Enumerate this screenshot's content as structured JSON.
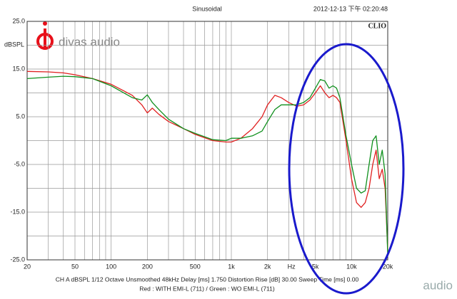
{
  "chart_data": {
    "type": "line",
    "title": "Sinusoidal",
    "timestamp": "2012-12-13 下午 02:20:48",
    "brand": "CLIO",
    "ylabel": "dBSPL",
    "xlabel": "Hz",
    "logo": "divas audio",
    "watermark": "audio",
    "settings_text": "CH A   dBSPL   1/12 Octave   Unsmoothed   48kHz   Delay [ms] 1.750   Distortion Rise [dB] 30.00   Sweep Time [ms] 0.00",
    "caption": "Red : WITH EMI-L (711) / Green : WO EMI-L (711)",
    "xlog": true,
    "grid": true,
    "xlim": [
      20,
      20000
    ],
    "ylim": [
      -25,
      25
    ],
    "xticks": [
      20,
      50,
      100,
      200,
      500,
      {
        "value": 1000,
        "label": "1k"
      },
      {
        "value": 2000,
        "label": "2k"
      },
      {
        "value": 5000,
        "label": "5k"
      },
      {
        "value": 10000,
        "label": "10k"
      },
      {
        "value": 20000,
        "label": "20k"
      }
    ],
    "xgrid": [
      30,
      40,
      60,
      70,
      80,
      90,
      300,
      400,
      600,
      700,
      800,
      900,
      3000,
      4000,
      6000,
      7000,
      8000,
      9000
    ],
    "yticks": [
      {
        "value": 25,
        "label": "25.0"
      },
      {
        "value": 15,
        "label": "15.0"
      },
      {
        "value": 5,
        "label": "5.0"
      },
      {
        "value": -5,
        "label": "-5.0"
      },
      {
        "value": -15,
        "label": "-15.0"
      },
      {
        "value": -25,
        "label": "-25.0"
      }
    ],
    "ygrid": [
      20,
      10,
      0,
      -10,
      -20
    ],
    "x": [
      20,
      30,
      40,
      50,
      70,
      100,
      150,
      180,
      200,
      220,
      250,
      300,
      400,
      500,
      700,
      900,
      1000,
      1200,
      1500,
      1800,
      2000,
      2300,
      2600,
      3000,
      3500,
      4000,
      4500,
      5000,
      5500,
      6000,
      6500,
      7000,
      7500,
      8000,
      9000,
      10000,
      11000,
      12000,
      13000,
      14000,
      15000,
      16000,
      17000,
      18000,
      19000,
      20000
    ],
    "series": [
      {
        "color": "#e02020",
        "values": [
          14.5,
          14.4,
          14.2,
          13.8,
          13,
          11.8,
          9.5,
          7.5,
          5.8,
          6.8,
          5.5,
          4,
          2.5,
          1.3,
          0,
          -0.3,
          -0.3,
          0.5,
          2.5,
          5,
          7.5,
          9.5,
          9,
          8,
          7.2,
          7.5,
          8.5,
          10,
          11.5,
          10,
          9,
          9.5,
          9,
          8,
          0,
          -8,
          -13,
          -14,
          -13,
          -10,
          -5,
          -2,
          -8,
          -6,
          -10,
          -23
        ]
      },
      {
        "color": "#10901e",
        "values": [
          13,
          13.3,
          13.5,
          13.4,
          13,
          11.5,
          9,
          8.5,
          9.6,
          8,
          6.5,
          4.5,
          2.5,
          1.5,
          0.2,
          0,
          0.5,
          0.5,
          1,
          2,
          4,
          6.5,
          7.5,
          7.5,
          7.5,
          8,
          9,
          11,
          12.8,
          12.5,
          11,
          11.5,
          11,
          9,
          1,
          -5,
          -10,
          -11,
          -10.5,
          -5,
          0,
          1,
          -5,
          -2,
          -7,
          -24
        ]
      }
    ]
  }
}
